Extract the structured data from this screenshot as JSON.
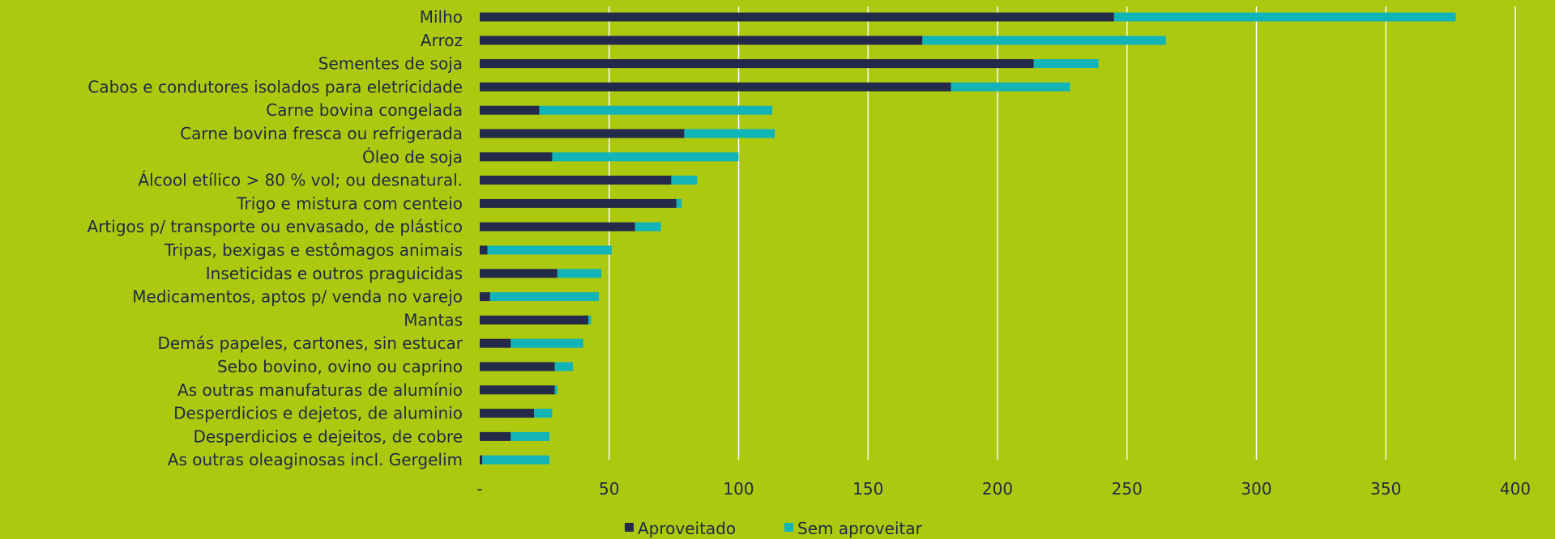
{
  "chart_data": {
    "type": "bar",
    "orientation": "horizontal",
    "stacked": true,
    "categories": [
      "Milho",
      "Arroz",
      "Sementes de soja",
      "Cabos e condutores isolados para eletricidade",
      "Carne bovina congelada",
      "Carne bovina fresca ou refrigerada",
      "Óleo de soja",
      "Álcool etílico > 80 % vol; ou desnatural.",
      "Trigo e mistura com centeio",
      "Artigos p/ transporte ou envasado, de plástico",
      "Tripas, bexigas e estômagos animais",
      "Inseticidas e outros praguicidas",
      "Medicamentos, aptos p/ venda no varejo",
      "Mantas",
      "Demás papeles, cartones, sin estucar",
      "Sebo bovino, ovino ou caprino",
      "As outras manufaturas de alumínio",
      "Desperdicios e dejetos, de aluminio",
      "Desperdicios e dejeitos, de cobre",
      "As outras oleaginosas incl. Gergelim"
    ],
    "series": [
      {
        "name": "Aproveitado",
        "color": "#242a4a",
        "values": [
          245,
          171,
          214,
          182,
          23,
          79,
          28,
          74,
          76,
          60,
          3,
          30,
          4,
          42,
          12,
          29,
          29,
          21,
          12,
          1
        ]
      },
      {
        "name": "Sem aproveitar",
        "color": "#13b4b7",
        "values": [
          132,
          94,
          25,
          46,
          90,
          35,
          72,
          10,
          2,
          10,
          48,
          17,
          42,
          1,
          28,
          7,
          1,
          7,
          15,
          26
        ]
      }
    ],
    "xlim": [
      0,
      400
    ],
    "xticks": [
      "-",
      "50",
      "100",
      "150",
      "200",
      "250",
      "300",
      "350",
      "400"
    ],
    "grid": "vertical",
    "legend": "bottom-center"
  }
}
